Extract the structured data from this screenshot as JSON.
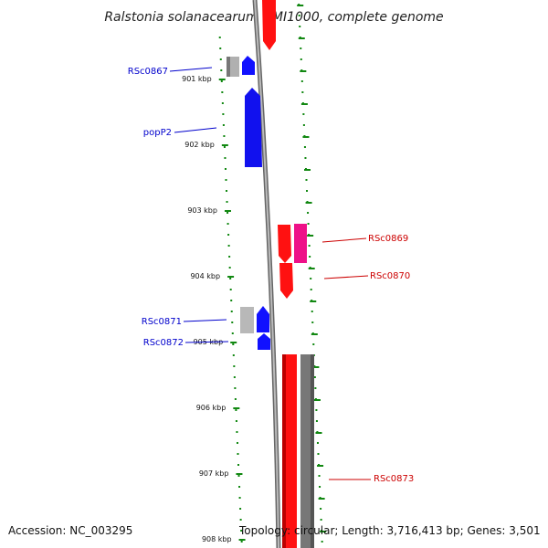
{
  "title": "Ralstonia solanacearum GMI1000, complete genome",
  "accession": "Accession: NC_003295",
  "topology": "Topology: circular; Length: 3,716,413 bp; Genes: 3,501",
  "colors": {
    "forward_gene": "#ff0000",
    "reverse_gene": "#0000ff",
    "pseudo_gene": "#aaaaaa",
    "other_gene": "#ee1188",
    "tick": "#118811",
    "backbone": "#888888",
    "label_reverse": "#0000cc",
    "label_forward": "#cc0000"
  },
  "kbp_ticks": [
    {
      "label": "901 kbp",
      "kbp": 901
    },
    {
      "label": "902 kbp",
      "kbp": 902
    },
    {
      "label": "903 kbp",
      "kbp": 903
    },
    {
      "label": "904 kbp",
      "kbp": 904
    },
    {
      "label": "905 kbp",
      "kbp": 905
    },
    {
      "label": "906 kbp",
      "kbp": 906
    },
    {
      "label": "907 kbp",
      "kbp": 907
    },
    {
      "label": "908 kbp",
      "kbp": 908
    }
  ],
  "gene_labels": [
    {
      "name": "RSc0867",
      "strand": "reverse"
    },
    {
      "name": "popP2",
      "strand": "reverse"
    },
    {
      "name": "RSc0869",
      "strand": "forward"
    },
    {
      "name": "RSc0870",
      "strand": "forward"
    },
    {
      "name": "RSc0871",
      "strand": "reverse"
    },
    {
      "name": "RSc0872",
      "strand": "reverse"
    },
    {
      "name": "RSc0873",
      "strand": "forward"
    }
  ]
}
